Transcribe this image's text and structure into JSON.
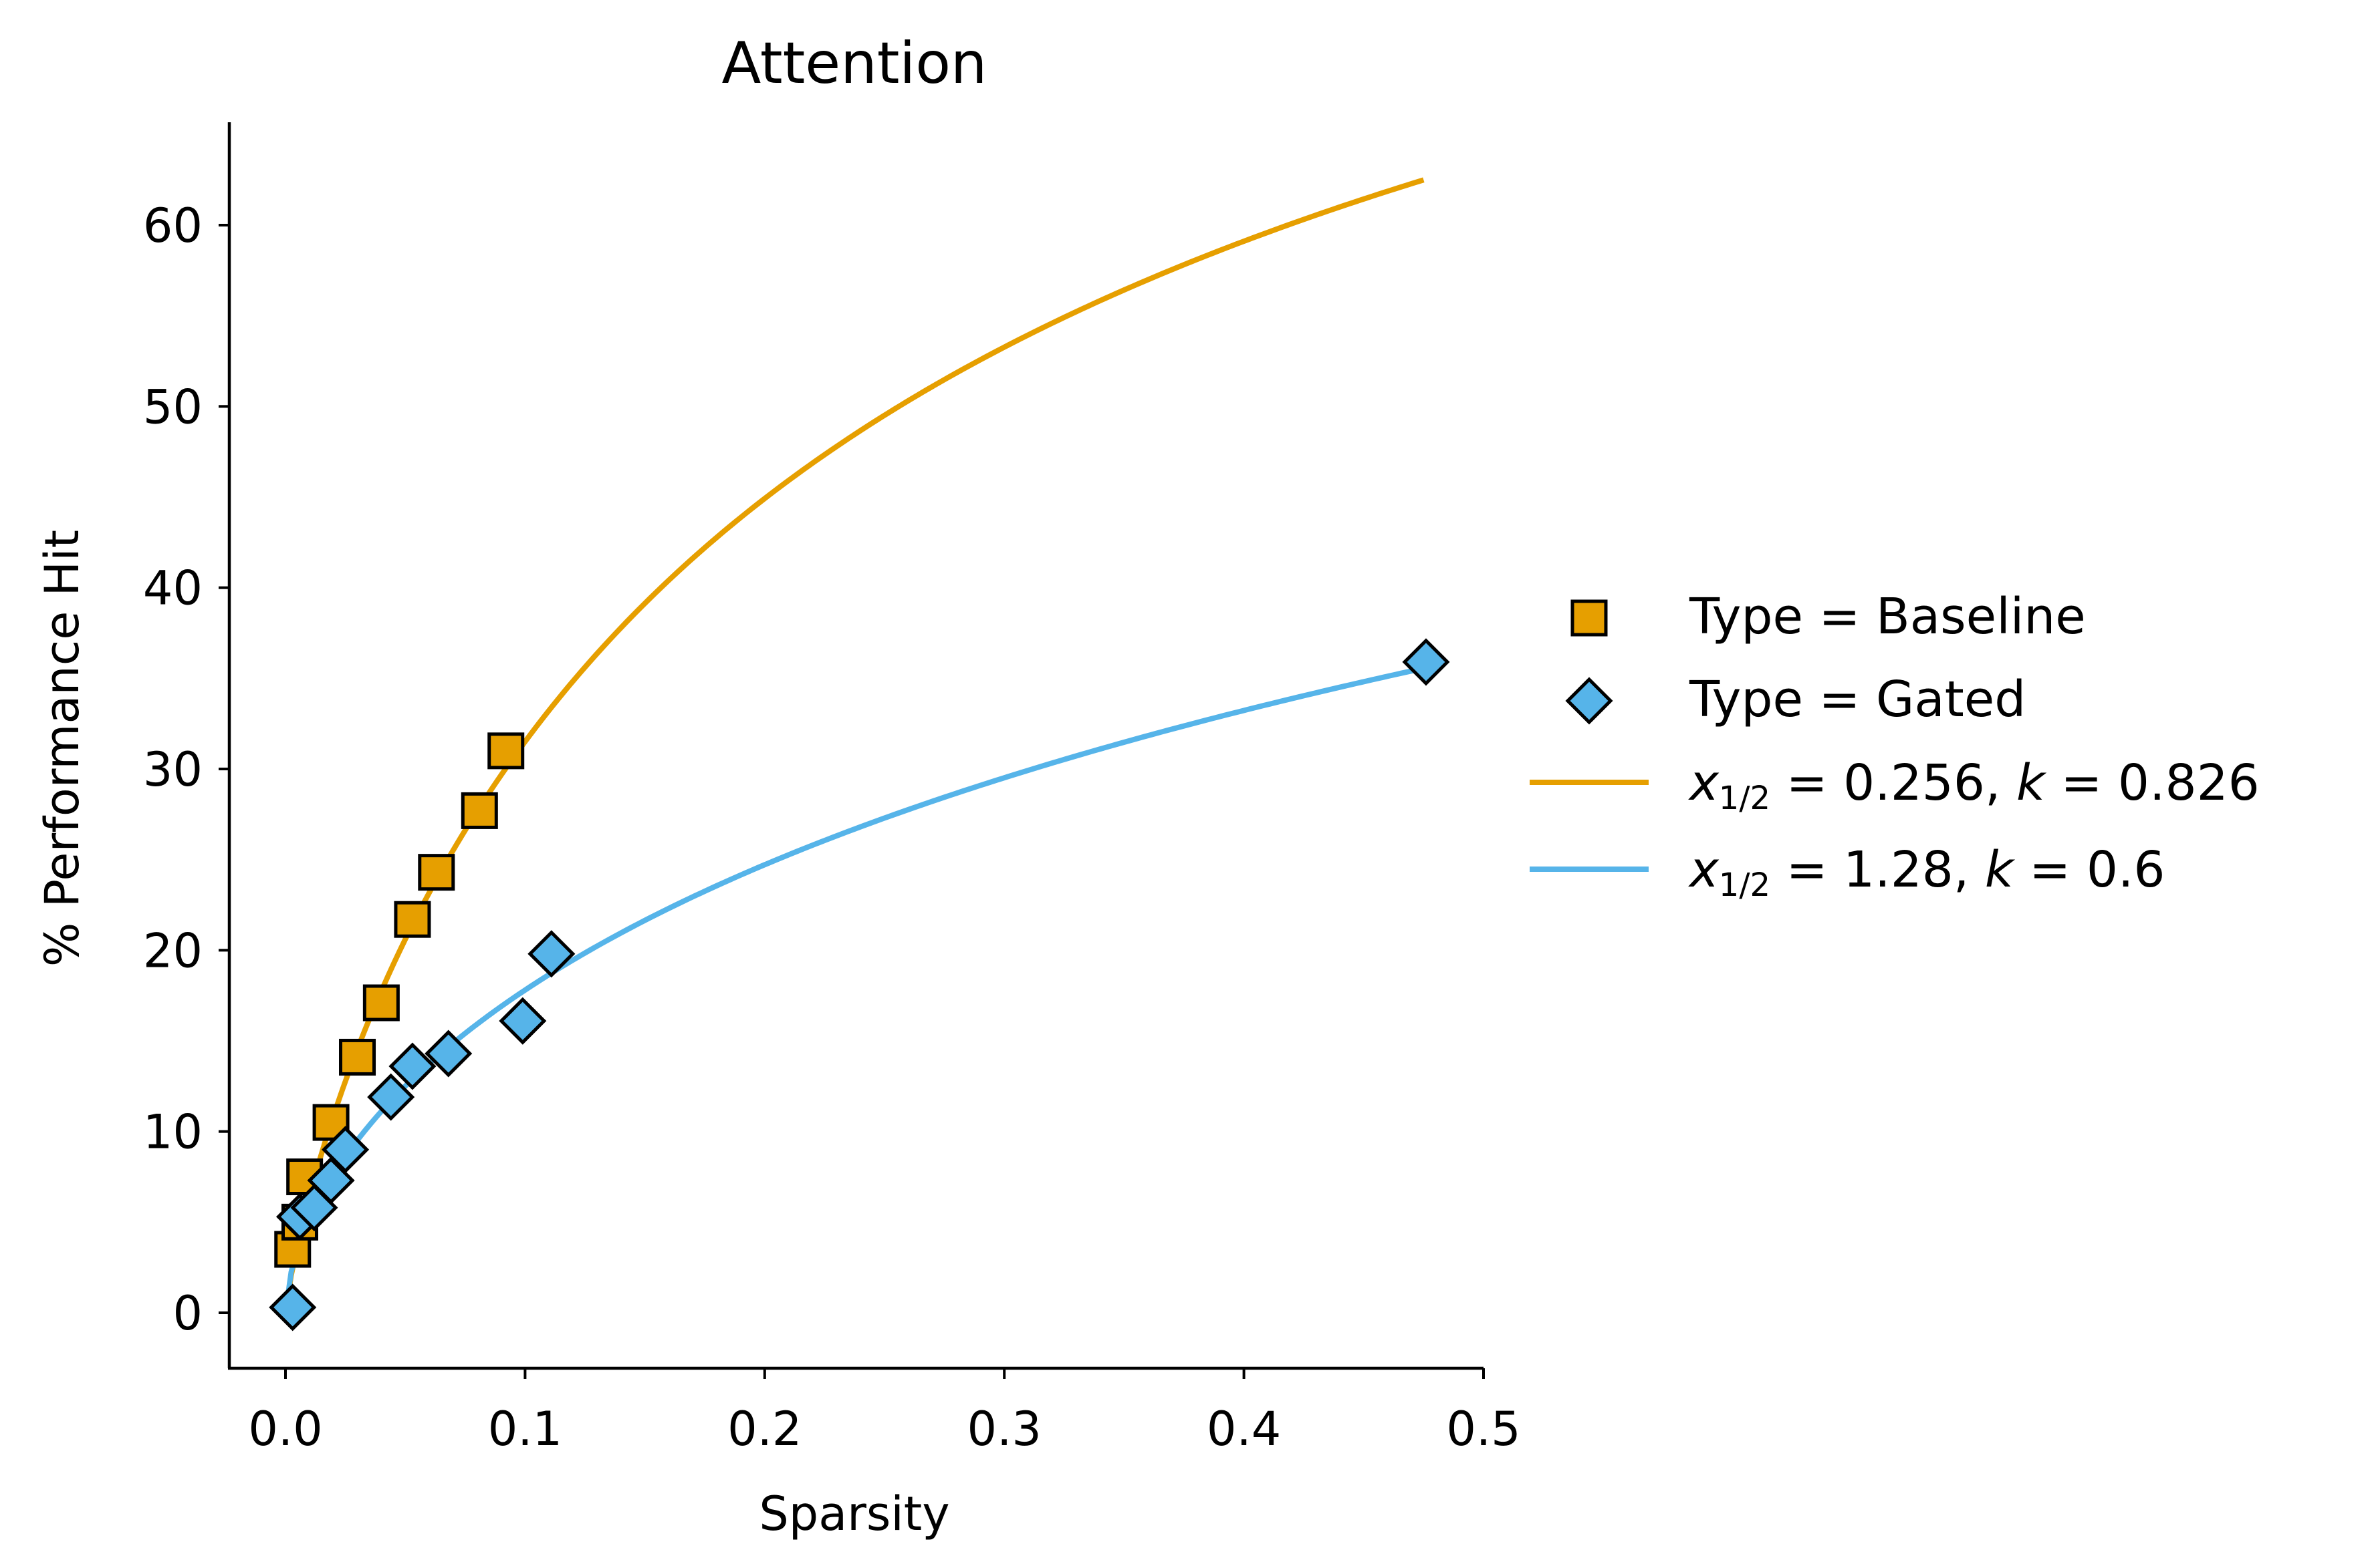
{
  "chart_data": {
    "type": "scatter",
    "title": "Attention",
    "xlabel": "Sparsity",
    "ylabel": "% Performance Hit",
    "xlim": [
      -0.023,
      0.5
    ],
    "ylim": [
      -3,
      65.5
    ],
    "xticks": [
      0.0,
      0.1,
      0.2,
      0.3,
      0.4,
      0.5
    ],
    "xtick_labels": [
      "0.0",
      "0.1",
      "0.2",
      "0.3",
      "0.4",
      "0.5"
    ],
    "yticks": [
      0,
      10,
      20,
      30,
      40,
      50,
      60
    ],
    "ytick_labels": [
      "0",
      "10",
      "20",
      "30",
      "40",
      "50",
      "60"
    ],
    "grid": false,
    "legend_position": "right-outside",
    "series": [
      {
        "name": "Type = Baseline",
        "marker": "square",
        "color": "#E69F00",
        "points": [
          [
            0.003,
            3.5
          ],
          [
            0.006,
            5.0
          ],
          [
            0.008,
            7.5
          ],
          [
            0.019,
            10.5
          ],
          [
            0.03,
            14.1
          ],
          [
            0.04,
            17.1
          ],
          [
            0.053,
            21.7
          ],
          [
            0.063,
            24.3
          ],
          [
            0.081,
            27.7
          ],
          [
            0.092,
            31.0
          ]
        ]
      },
      {
        "name": "Type = Gated",
        "marker": "diamond",
        "color": "#56B4E9",
        "points": [
          [
            0.003,
            0.3
          ],
          [
            0.006,
            5.3
          ],
          [
            0.012,
            5.8
          ],
          [
            0.019,
            7.3
          ],
          [
            0.025,
            9.0
          ],
          [
            0.044,
            11.9
          ],
          [
            0.053,
            13.6
          ],
          [
            0.068,
            14.3
          ],
          [
            0.099,
            16.1
          ],
          [
            0.111,
            19.8
          ],
          [
            0.476,
            35.9
          ]
        ]
      }
    ],
    "fits": [
      {
        "label_var": "x",
        "label_sub": "1/2",
        "label_eq": " = 0.256,  ",
        "label_k": "k",
        "label_k_eq": " = 0.826",
        "x_half": 0.256,
        "k": 0.826,
        "A": 100,
        "color": "#E69F00",
        "x_range": [
          0.0,
          0.475
        ]
      },
      {
        "label_var": "x",
        "label_sub": "1/2",
        "label_eq": " = 1.28,  ",
        "label_k": "k",
        "label_k_eq": " = 0.6",
        "x_half": 1.28,
        "k": 0.6,
        "A": 100,
        "color": "#56B4E9",
        "x_range": [
          0.0,
          0.475
        ]
      }
    ]
  }
}
